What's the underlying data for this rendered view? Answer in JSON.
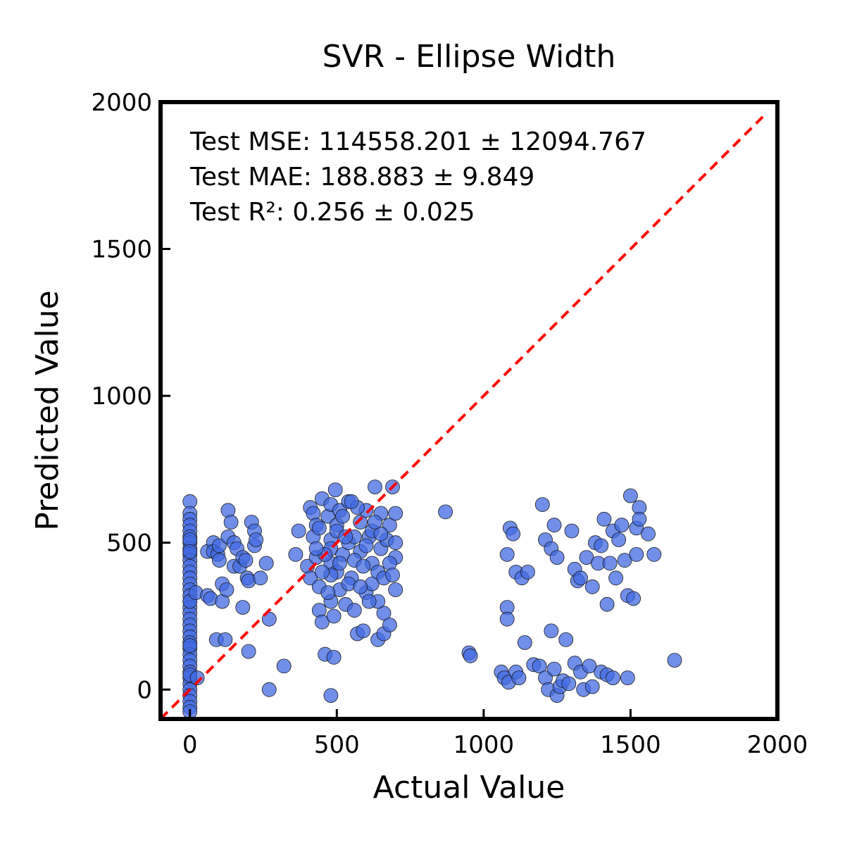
{
  "chart_data": {
    "type": "scatter",
    "title": "SVR - Ellipse Width",
    "xlabel": "Actual Value",
    "ylabel": "Predicted Value",
    "xlim": [
      -100,
      2000
    ],
    "ylim": [
      -100,
      2000
    ],
    "xticks": [
      "0",
      "500",
      "1000",
      "1500",
      "2000"
    ],
    "yticks": [
      "0",
      "500",
      "1000",
      "1500",
      "2000"
    ],
    "xtick_values": [
      0,
      500,
      1000,
      1500,
      2000
    ],
    "ytick_values": [
      0,
      500,
      1000,
      1500,
      2000
    ],
    "grid": false,
    "annotations": [
      "Test MSE: 114558.201 ± 12094.767",
      "Test MAE: 188.883 ± 9.849",
      "Test R²: 0.256 ± 0.025"
    ],
    "reference_line": {
      "style": "dashed",
      "color": "#ff0000",
      "from": [
        -100,
        -100
      ],
      "to": [
        1950,
        1950
      ]
    },
    "marker_color": "#4169e1",
    "points": [
      [
        0,
        640
      ],
      [
        0,
        600
      ],
      [
        0,
        580
      ],
      [
        0,
        560
      ],
      [
        0,
        540
      ],
      [
        0,
        520
      ],
      [
        0,
        500
      ],
      [
        0,
        480
      ],
      [
        0,
        460
      ],
      [
        0,
        440
      ],
      [
        0,
        420
      ],
      [
        0,
        400
      ],
      [
        0,
        380
      ],
      [
        0,
        360
      ],
      [
        0,
        340
      ],
      [
        0,
        320
      ],
      [
        0,
        300
      ],
      [
        0,
        280
      ],
      [
        0,
        260
      ],
      [
        0,
        240
      ],
      [
        0,
        220
      ],
      [
        0,
        200
      ],
      [
        0,
        180
      ],
      [
        0,
        160
      ],
      [
        0,
        140
      ],
      [
        0,
        120
      ],
      [
        0,
        100
      ],
      [
        0,
        80
      ],
      [
        0,
        60
      ],
      [
        0,
        40
      ],
      [
        0,
        20
      ],
      [
        0,
        0
      ],
      [
        0,
        -20
      ],
      [
        0,
        -40
      ],
      [
        0,
        -60
      ],
      [
        0,
        -75
      ],
      [
        0,
        510
      ],
      [
        0,
        470
      ],
      [
        0,
        300
      ],
      [
        0,
        150
      ],
      [
        0,
        50
      ],
      [
        20,
        330
      ],
      [
        25,
        40
      ],
      [
        60,
        470
      ],
      [
        60,
        320
      ],
      [
        70,
        310
      ],
      [
        80,
        500
      ],
      [
        80,
        470
      ],
      [
        90,
        170
      ],
      [
        95,
        460
      ],
      [
        100,
        440
      ],
      [
        100,
        490
      ],
      [
        110,
        360
      ],
      [
        110,
        300
      ],
      [
        120,
        170
      ],
      [
        125,
        340
      ],
      [
        130,
        610
      ],
      [
        130,
        520
      ],
      [
        140,
        570
      ],
      [
        150,
        500
      ],
      [
        150,
        420
      ],
      [
        160,
        480
      ],
      [
        170,
        420
      ],
      [
        180,
        450
      ],
      [
        180,
        280
      ],
      [
        190,
        440
      ],
      [
        195,
        380
      ],
      [
        200,
        370
      ],
      [
        200,
        130
      ],
      [
        210,
        570
      ],
      [
        220,
        540
      ],
      [
        220,
        490
      ],
      [
        225,
        510
      ],
      [
        240,
        380
      ],
      [
        260,
        430
      ],
      [
        270,
        240
      ],
      [
        270,
        0
      ],
      [
        320,
        80
      ],
      [
        360,
        460
      ],
      [
        370,
        540
      ],
      [
        400,
        420
      ],
      [
        410,
        620
      ],
      [
        410,
        380
      ],
      [
        420,
        600
      ],
      [
        420,
        520
      ],
      [
        430,
        560
      ],
      [
        430,
        450
      ],
      [
        440,
        350
      ],
      [
        440,
        270
      ],
      [
        450,
        650
      ],
      [
        450,
        230
      ],
      [
        460,
        120
      ],
      [
        470,
        590
      ],
      [
        480,
        630
      ],
      [
        480,
        510
      ],
      [
        480,
        480
      ],
      [
        480,
        430
      ],
      [
        480,
        300
      ],
      [
        480,
        -20
      ],
      [
        490,
        110
      ],
      [
        490,
        250
      ],
      [
        495,
        680
      ],
      [
        500,
        560
      ],
      [
        500,
        540
      ],
      [
        500,
        400
      ],
      [
        510,
        610
      ],
      [
        510,
        340
      ],
      [
        520,
        460
      ],
      [
        530,
        290
      ],
      [
        540,
        640
      ],
      [
        540,
        500
      ],
      [
        550,
        380
      ],
      [
        560,
        520
      ],
      [
        560,
        270
      ],
      [
        570,
        190
      ],
      [
        580,
        570
      ],
      [
        580,
        470
      ],
      [
        590,
        200
      ],
      [
        600,
        610
      ],
      [
        600,
        330
      ],
      [
        610,
        520
      ],
      [
        620,
        430
      ],
      [
        620,
        360
      ],
      [
        630,
        690
      ],
      [
        640,
        170
      ],
      [
        640,
        400
      ],
      [
        650,
        600
      ],
      [
        650,
        480
      ],
      [
        660,
        190
      ],
      [
        660,
        260
      ],
      [
        670,
        510
      ],
      [
        680,
        220
      ],
      [
        680,
        560
      ],
      [
        690,
        690
      ],
      [
        700,
        600
      ],
      [
        700,
        450
      ],
      [
        700,
        340
      ],
      [
        440,
        550
      ],
      [
        460,
        460
      ],
      [
        480,
        390
      ],
      [
        520,
        590
      ],
      [
        540,
        360
      ],
      [
        560,
        440
      ],
      [
        580,
        350
      ],
      [
        600,
        490
      ],
      [
        620,
        540
      ],
      [
        640,
        300
      ],
      [
        660,
        380
      ],
      [
        680,
        430
      ],
      [
        700,
        500
      ],
      [
        430,
        480
      ],
      [
        510,
        430
      ],
      [
        570,
        620
      ],
      [
        610,
        300
      ],
      [
        650,
        530
      ],
      [
        690,
        390
      ],
      [
        470,
        330
      ],
      [
        530,
        520
      ],
      [
        590,
        420
      ],
      [
        450,
        400
      ],
      [
        550,
        640
      ],
      [
        630,
        570
      ],
      [
        870,
        605
      ],
      [
        950,
        125
      ],
      [
        955,
        115
      ],
      [
        1060,
        60
      ],
      [
        1070,
        40
      ],
      [
        1080,
        460
      ],
      [
        1080,
        280
      ],
      [
        1080,
        240
      ],
      [
        1085,
        25
      ],
      [
        1090,
        550
      ],
      [
        1100,
        530
      ],
      [
        1110,
        400
      ],
      [
        1110,
        60
      ],
      [
        1120,
        40
      ],
      [
        1130,
        380
      ],
      [
        1140,
        160
      ],
      [
        1150,
        400
      ],
      [
        1170,
        85
      ],
      [
        1190,
        80
      ],
      [
        1200,
        630
      ],
      [
        1210,
        510
      ],
      [
        1210,
        40
      ],
      [
        1220,
        0
      ],
      [
        1230,
        480
      ],
      [
        1230,
        200
      ],
      [
        1240,
        560
      ],
      [
        1240,
        70
      ],
      [
        1250,
        450
      ],
      [
        1250,
        -20
      ],
      [
        1260,
        10
      ],
      [
        1270,
        30
      ],
      [
        1280,
        170
      ],
      [
        1290,
        20
      ],
      [
        1300,
        540
      ],
      [
        1310,
        410
      ],
      [
        1310,
        90
      ],
      [
        1320,
        370
      ],
      [
        1330,
        380
      ],
      [
        1330,
        60
      ],
      [
        1340,
        0
      ],
      [
        1350,
        450
      ],
      [
        1360,
        80
      ],
      [
        1370,
        350
      ],
      [
        1370,
        10
      ],
      [
        1380,
        500
      ],
      [
        1390,
        430
      ],
      [
        1400,
        490
      ],
      [
        1400,
        60
      ],
      [
        1410,
        580
      ],
      [
        1420,
        290
      ],
      [
        1420,
        50
      ],
      [
        1430,
        430
      ],
      [
        1440,
        540
      ],
      [
        1440,
        40
      ],
      [
        1450,
        380
      ],
      [
        1460,
        510
      ],
      [
        1470,
        560
      ],
      [
        1480,
        440
      ],
      [
        1490,
        320
      ],
      [
        1490,
        40
      ],
      [
        1500,
        660
      ],
      [
        1510,
        310
      ],
      [
        1520,
        550
      ],
      [
        1520,
        460
      ],
      [
        1530,
        620
      ],
      [
        1530,
        580
      ],
      [
        1560,
        530
      ],
      [
        1580,
        460
      ],
      [
        1650,
        100
      ]
    ]
  }
}
